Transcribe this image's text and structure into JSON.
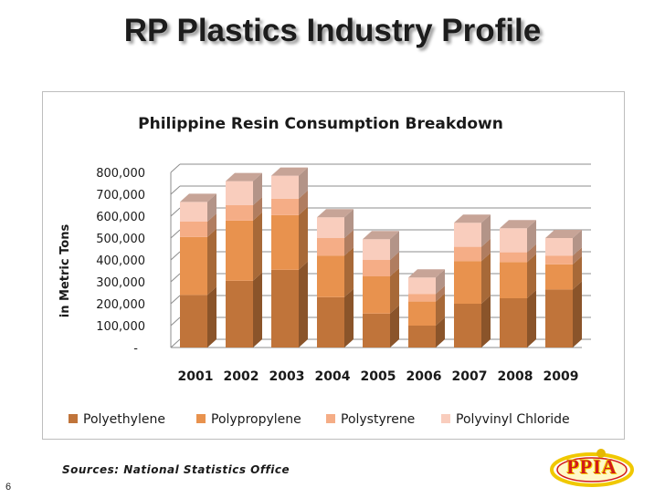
{
  "slide": {
    "title": "RP Plastics Industry Profile",
    "source": "Sources: National Statistics Office",
    "page_number": "6",
    "logo_text": "PPIA"
  },
  "colors": {
    "Polyethylene": "#c0743a",
    "Polypropylene": "#e8924e",
    "Polystyrene": "#f5ad86",
    "Polyvinyl Chloride": "#f9cdbd"
  },
  "chart_data": {
    "type": "bar",
    "stacked": true,
    "three_d": true,
    "title": "Philippine Resin Consumption Breakdown",
    "xlabel": "",
    "ylabel": "in Metric Tons",
    "ylim": [
      0,
      800000
    ],
    "yticks": [
      0,
      100000,
      200000,
      300000,
      400000,
      500000,
      600000,
      700000,
      800000
    ],
    "ytick_labels": [
      "-",
      "100,000",
      "200,000",
      "300,000",
      "400,000",
      "500,000",
      "600,000",
      "700,000",
      "800,000"
    ],
    "categories": [
      "2001",
      "2002",
      "2003",
      "2004",
      "2005",
      "2006",
      "2007",
      "2008",
      "2009"
    ],
    "series": [
      {
        "name": "Polyethylene",
        "values": [
          240000,
          305000,
          355000,
          230000,
          155000,
          100000,
          200000,
          225000,
          265000
        ]
      },
      {
        "name": "Polypropylene",
        "values": [
          265000,
          275000,
          250000,
          190000,
          170000,
          110000,
          195000,
          165000,
          115000
        ]
      },
      {
        "name": "Polystyrene",
        "values": [
          70000,
          70000,
          75000,
          80000,
          75000,
          35000,
          65000,
          45000,
          40000
        ]
      },
      {
        "name": "Polyvinyl Chloride",
        "values": [
          90000,
          110000,
          105000,
          95000,
          95000,
          75000,
          110000,
          110000,
          80000
        ]
      }
    ],
    "legend_position": "bottom",
    "grid": true
  }
}
